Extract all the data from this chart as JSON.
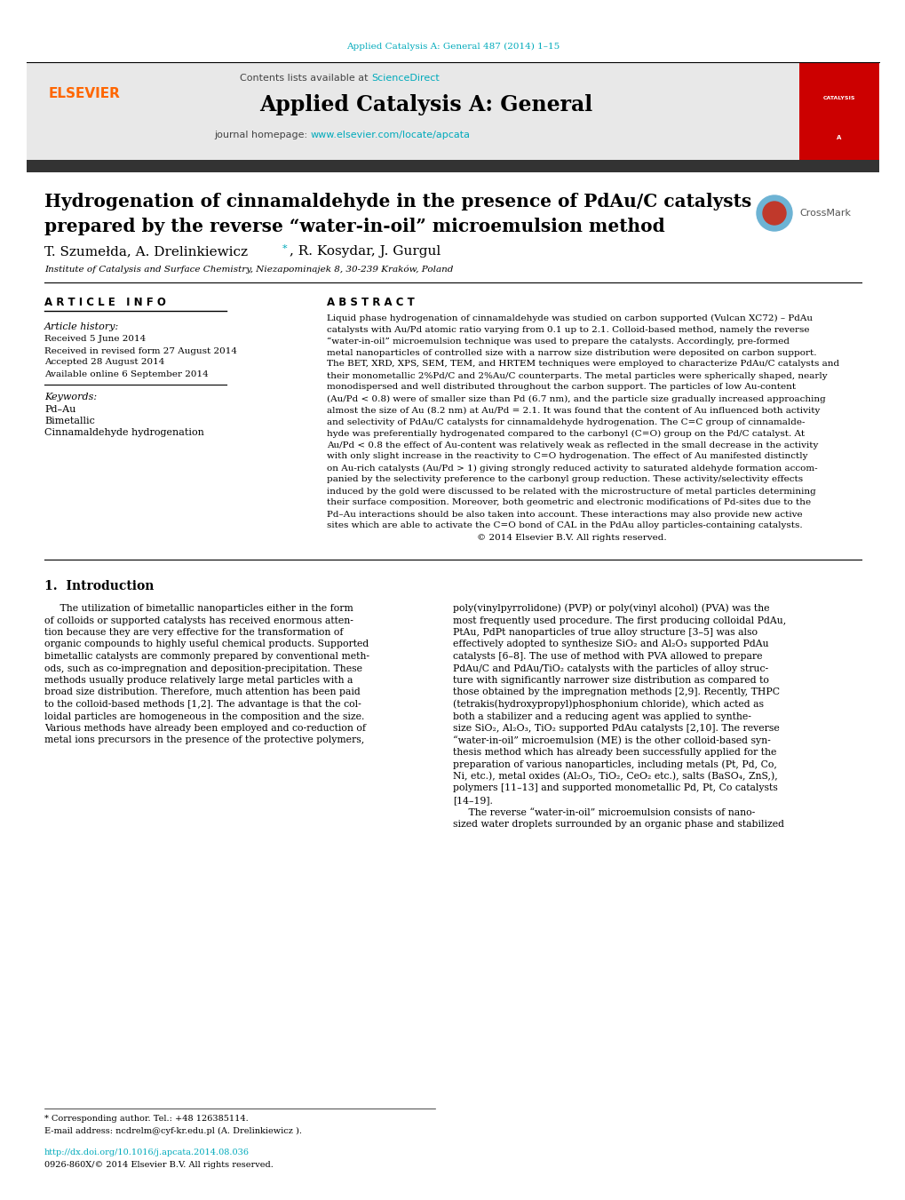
{
  "journal_ref": "Applied Catalysis A: General 487 (2014) 1–15",
  "journal_ref_color": "#00AABB",
  "contents_text": "Contents lists available at ",
  "sciencedirect_text": "ScienceDirect",
  "sciencedirect_color": "#00AABB",
  "journal_title": "Applied Catalysis A: General",
  "journal_homepage_prefix": "journal homepage: ",
  "journal_homepage_url": "www.elsevier.com/locate/apcata",
  "journal_homepage_color": "#00AABB",
  "header_bg": "#E8E8E8",
  "dark_bar_color": "#333333",
  "elsevier_color": "#FF6600",
  "article_title_line1": "Hydrogenation of cinnamaldehyde in the presence of PdAu/C catalysts",
  "article_title_line2": "prepared by the reverse “water-in-oil” microemulsion method",
  "authors_part1": "T. Szumełda, A. Drelinkiewicz",
  "authors_star": "*",
  "authors_part2": ", R. Kosydar, J. Gurgul",
  "affiliation": "Institute of Catalysis and Surface Chemistry, Niezapominajek 8, 30-239 Kraków, Poland",
  "article_info_header": "A R T I C L E   I N F O",
  "abstract_header": "A B S T R A C T",
  "article_history_label": "Article history:",
  "received": "Received 5 June 2014",
  "received_revised": "Received in revised form 27 August 2014",
  "accepted": "Accepted 28 August 2014",
  "available": "Available online 6 September 2014",
  "keywords_label": "Keywords:",
  "keyword1": "Pd–Au",
  "keyword2": "Bimetallic",
  "keyword3": "Cinnamaldehyde hydrogenation",
  "abstract_lines": [
    "Liquid phase hydrogenation of cinnamaldehyde was studied on carbon supported (Vulcan XC72) – PdAu",
    "catalysts with Au/Pd atomic ratio varying from 0.1 up to 2.1. Colloid-based method, namely the reverse",
    "“water-in-oil” microemulsion technique was used to prepare the catalysts. Accordingly, pre-formed",
    "metal nanoparticles of controlled size with a narrow size distribution were deposited on carbon support.",
    "The BET, XRD, XPS, SEM, TEM, and HRTEM techniques were employed to characterize PdAu/C catalysts and",
    "their monometallic 2%Pd/C and 2%Au/C counterparts. The metal particles were spherically shaped, nearly",
    "monodispersed and well distributed throughout the carbon support. The particles of low Au-content",
    "(Au/Pd < 0.8) were of smaller size than Pd (6.7 nm), and the particle size gradually increased approaching",
    "almost the size of Au (8.2 nm) at Au/Pd = 2.1. It was found that the content of Au influenced both activity",
    "and selectivity of PdAu/C catalysts for cinnamaldehyde hydrogenation. The C=C group of cinnamalde-",
    "hyde was preferentially hydrogenated compared to the carbonyl (C=O) group on the Pd/C catalyst. At",
    "Au/Pd < 0.8 the effect of Au-content was relatively weak as reflected in the small decrease in the activity",
    "with only slight increase in the reactivity to C=O hydrogenation. The effect of Au manifested distinctly",
    "on Au-rich catalysts (Au/Pd > 1) giving strongly reduced activity to saturated aldehyde formation accom-",
    "panied by the selectivity preference to the carbonyl group reduction. These activity/selectivity effects",
    "induced by the gold were discussed to be related with the microstructure of metal particles determining",
    "their surface composition. Moreover, both geometric and electronic modifications of Pd-sites due to the",
    "Pd–Au interactions should be also taken into account. These interactions may also provide new active",
    "sites which are able to activate the C=O bond of CAL in the PdAu alloy particles-containing catalysts.",
    "                                                    © 2014 Elsevier B.V. All rights reserved."
  ],
  "section1_header": "1.  Introduction",
  "intro1_lines": [
    "     The utilization of bimetallic nanoparticles either in the form",
    "of colloids or supported catalysts has received enormous atten-",
    "tion because they are very effective for the transformation of",
    "organic compounds to highly useful chemical products. Supported",
    "bimetallic catalysts are commonly prepared by conventional meth-",
    "ods, such as co-impregnation and deposition-precipitation. These",
    "methods usually produce relatively large metal particles with a",
    "broad size distribution. Therefore, much attention has been paid",
    "to the colloid-based methods [1,2]. The advantage is that the col-",
    "loidal particles are homogeneous in the composition and the size.",
    "Various methods have already been employed and co-reduction of",
    "metal ions precursors in the presence of the protective polymers,"
  ],
  "intro2_lines": [
    "poly(vinylpyrrolidone) (PVP) or poly(vinyl alcohol) (PVA) was the",
    "most frequently used procedure. The first producing colloidal PdAu,",
    "PtAu, PdPt nanoparticles of true alloy structure [3–5] was also",
    "effectively adopted to synthesize SiO₂ and Al₂O₃ supported PdAu",
    "catalysts [6–8]. The use of method with PVA allowed to prepare",
    "PdAu/C and PdAu/TiO₂ catalysts with the particles of alloy struc-",
    "ture with significantly narrower size distribution as compared to",
    "those obtained by the impregnation methods [2,9]. Recently, THPC",
    "(tetrakis(hydroxypropyl)phosphonium chloride), which acted as",
    "both a stabilizer and a reducing agent was applied to synthe-",
    "size SiO₂, Al₂O₃, TiO₂ supported PdAu catalysts [2,10]. The reverse",
    "“water-in-oil” microemulsion (ME) is the other colloid-based syn-",
    "thesis method which has already been successfully applied for the",
    "preparation of various nanoparticles, including metals (Pt, Pd, Co,",
    "Ni, etc.), metal oxides (Al₂O₃, TiO₂, CeO₂ etc.), salts (BaSO₄, ZnS,),",
    "polymers [11–13] and supported monometallic Pd, Pt, Co catalysts",
    "[14–19].",
    "     The reverse “water-in-oil” microemulsion consists of nano-",
    "sized water droplets surrounded by an organic phase and stabilized"
  ],
  "footnote_corresponding": "* Corresponding author. Tel.: +48 126385114.",
  "footnote_email": "E-mail address: ncdrelm@cyf-kr.edu.pl (A. Drelinkiewicz ).",
  "footnote_doi": "http://dx.doi.org/10.1016/j.apcata.2014.08.036",
  "footnote_issn": "0926-860X/© 2014 Elsevier B.V. All rights reserved.",
  "red_cover_color": "#CC0000",
  "background_color": "#FFFFFF"
}
